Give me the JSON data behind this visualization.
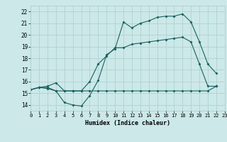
{
  "xlabel": "Humidex (Indice chaleur)",
  "xlim": [
    0,
    23
  ],
  "ylim": [
    13.5,
    22.5
  ],
  "yticks": [
    14,
    15,
    16,
    17,
    18,
    19,
    20,
    21,
    22
  ],
  "xticks": [
    0,
    1,
    2,
    3,
    4,
    5,
    6,
    7,
    8,
    9,
    10,
    11,
    12,
    13,
    14,
    15,
    16,
    17,
    18,
    19,
    20,
    21,
    22,
    23
  ],
  "bg_color": "#cce8e8",
  "line_color": "#1a6060",
  "grid_color": "#aacece",
  "line1_x": [
    0,
    1,
    2,
    3,
    4,
    5,
    6,
    7,
    8,
    9,
    10,
    11,
    12,
    13,
    14,
    15,
    16,
    17,
    18,
    19,
    20,
    21,
    22
  ],
  "line1_y": [
    15.3,
    15.5,
    15.4,
    15.2,
    15.2,
    15.2,
    15.2,
    15.2,
    15.2,
    15.2,
    15.2,
    15.2,
    15.2,
    15.2,
    15.2,
    15.2,
    15.2,
    15.2,
    15.2,
    15.2,
    15.2,
    15.2,
    15.6
  ],
  "line2_x": [
    0,
    1,
    2,
    3,
    4,
    5,
    6,
    7,
    8,
    9,
    10,
    11,
    12,
    13,
    14,
    15,
    16,
    17,
    18,
    19,
    20,
    21,
    22
  ],
  "line2_y": [
    15.3,
    15.5,
    15.5,
    15.2,
    14.2,
    14.0,
    13.9,
    14.8,
    16.1,
    18.3,
    18.8,
    21.1,
    20.6,
    21.0,
    21.2,
    21.5,
    21.6,
    21.6,
    21.8,
    21.1,
    19.4,
    17.5,
    16.7
  ],
  "line3_x": [
    0,
    1,
    2,
    3,
    4,
    5,
    6,
    7,
    8,
    9,
    10,
    11,
    12,
    13,
    14,
    15,
    16,
    17,
    18,
    19,
    20,
    21,
    22
  ],
  "line3_y": [
    15.3,
    15.5,
    15.6,
    15.9,
    15.2,
    15.2,
    15.2,
    16.0,
    17.5,
    18.2,
    18.9,
    18.9,
    19.2,
    19.3,
    19.4,
    19.5,
    19.6,
    19.7,
    19.8,
    19.4,
    17.5,
    15.6,
    15.6
  ]
}
